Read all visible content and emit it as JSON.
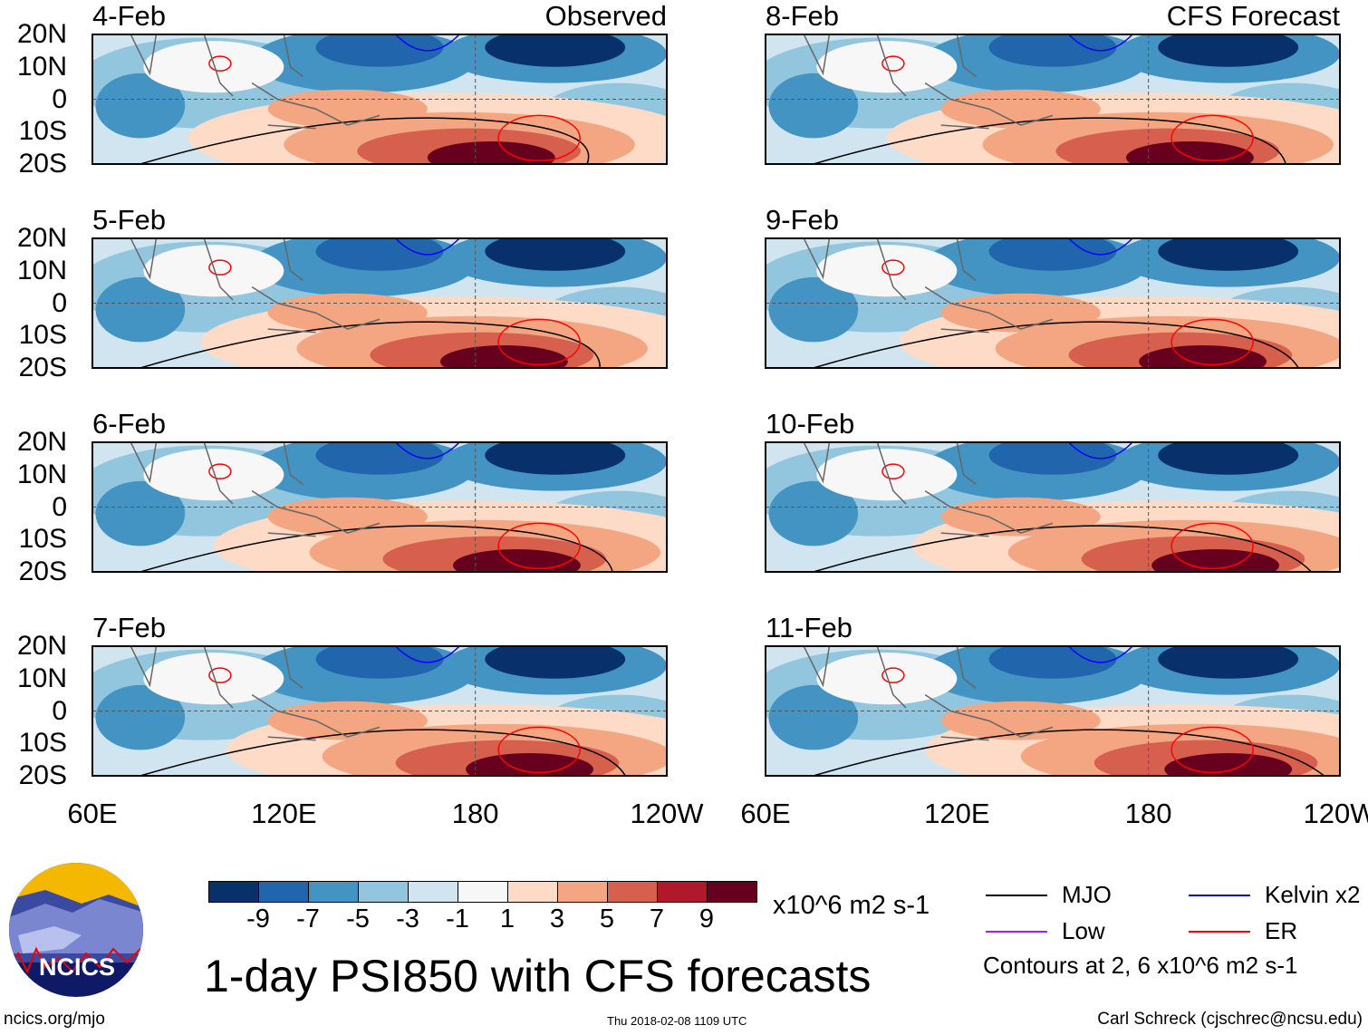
{
  "panels_left_label": "Observed",
  "panels_right_label": "CFS Forecast",
  "panels": [
    {
      "date": "4-Feb",
      "group": "observed"
    },
    {
      "date": "5-Feb",
      "group": "observed"
    },
    {
      "date": "6-Feb",
      "group": "observed"
    },
    {
      "date": "7-Feb",
      "group": "observed"
    },
    {
      "date": "8-Feb",
      "group": "forecast"
    },
    {
      "date": "9-Feb",
      "group": "forecast"
    },
    {
      "date": "10-Feb",
      "group": "forecast"
    },
    {
      "date": "11-Feb",
      "group": "forecast"
    }
  ],
  "lat_labels": [
    "20N",
    "10N",
    "0",
    "10S",
    "20S"
  ],
  "lon_labels": [
    "60E",
    "120E",
    "180",
    "120W"
  ],
  "colorbar": {
    "colors": [
      "#08306b",
      "#2166ac",
      "#4393c3",
      "#92c5de",
      "#d1e5f0",
      "#f7f7f7",
      "#fddbc7",
      "#f4a582",
      "#d6604d",
      "#b2182b",
      "#67001f"
    ],
    "labels": [
      "-9",
      "-7",
      "-5",
      "-3",
      "-1",
      "1",
      "3",
      "5",
      "7",
      "9"
    ],
    "units": "x10^6 m2 s-1"
  },
  "title": "1-day PSI850 with CFS forecasts",
  "legend": {
    "items": [
      {
        "label": "MJO",
        "color": "#000000"
      },
      {
        "label": "Kelvin x2",
        "color": "#0000ff"
      },
      {
        "label": "Low",
        "color": "#a020f0"
      },
      {
        "label": "ER",
        "color": "#ff0000"
      }
    ],
    "note": "Contours at 2, 6 x10^6 m2 s-1"
  },
  "logo_text": "NCICS",
  "footer": {
    "url": "ncics.org/mjo",
    "timestamp": "Thu 2018-02-08 1109 UTC",
    "credit": "Carl Schreck (cjschrec@ncsu.edu)"
  }
}
